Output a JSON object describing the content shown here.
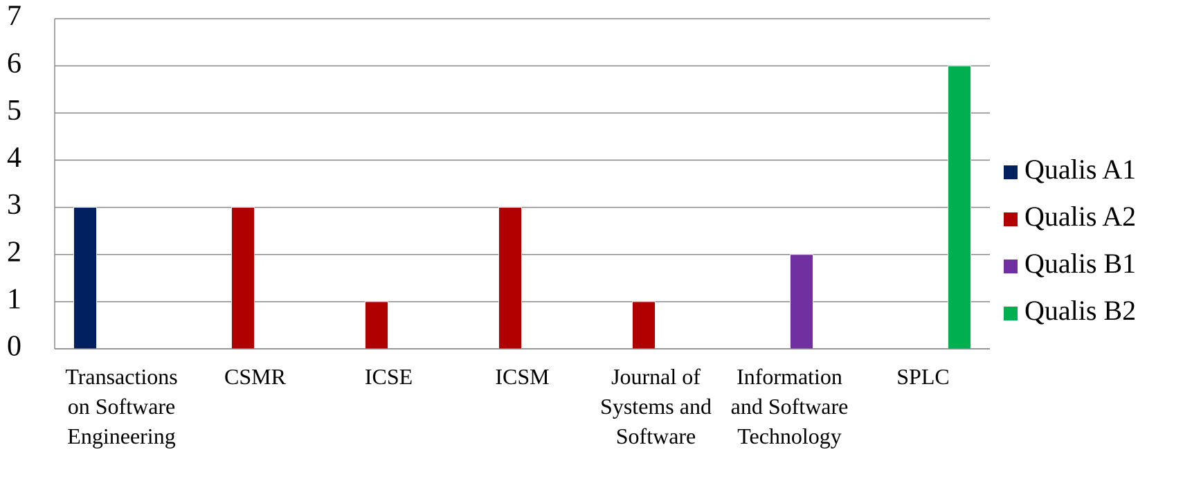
{
  "chart_data": {
    "type": "bar",
    "categories": [
      "Transactions on Software Engineering",
      "CSMR",
      "ICSE",
      "ICSM",
      "Journal of Systems and Software",
      "Information and Software Technology",
      "SPLC"
    ],
    "series": [
      {
        "name": "Qualis A1",
        "color": "#002060",
        "values": [
          3,
          null,
          null,
          null,
          null,
          null,
          null
        ]
      },
      {
        "name": "Qualis A2",
        "color": "#b00000",
        "values": [
          null,
          3,
          1,
          3,
          1,
          null,
          null
        ]
      },
      {
        "name": "Qualis B1",
        "color": "#7030a0",
        "values": [
          null,
          null,
          null,
          null,
          null,
          2,
          null
        ]
      },
      {
        "name": "Qualis B2",
        "color": "#00b050",
        "values": [
          null,
          null,
          null,
          null,
          null,
          null,
          6
        ]
      }
    ],
    "ylim": [
      0,
      7
    ],
    "yticks": [
      0,
      1,
      2,
      3,
      4,
      5,
      6,
      7
    ],
    "grid": true,
    "legend": "right"
  }
}
